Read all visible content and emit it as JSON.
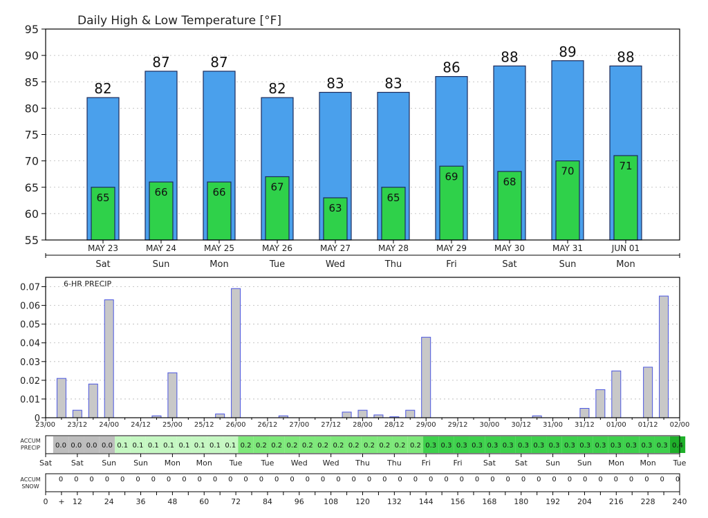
{
  "chart_data": [
    {
      "type": "bar",
      "title": "Daily High & Low Temperature [°F]",
      "ylim": [
        55,
        95
      ],
      "yticks": [
        55,
        60,
        65,
        70,
        75,
        80,
        85,
        90,
        95
      ],
      "grid": true,
      "categories": [
        "MAY 23",
        "MAY 24",
        "MAY 25",
        "MAY 26",
        "MAY 27",
        "MAY 28",
        "MAY 29",
        "MAY 30",
        "MAY 31",
        "JUN 01"
      ],
      "weekdays": [
        "Sat",
        "Sun",
        "Mon",
        "Tue",
        "Wed",
        "Thu",
        "Fri",
        "Sat",
        "Sun",
        "Mon"
      ],
      "series": [
        {
          "name": "High",
          "color": "#4aa0ec",
          "values": [
            82,
            87,
            87,
            82,
            83,
            83,
            86,
            88,
            89,
            88
          ]
        },
        {
          "name": "Low",
          "color": "#2fd14a",
          "values": [
            65,
            66,
            66,
            67,
            63,
            65,
            69,
            68,
            70,
            71
          ]
        }
      ]
    },
    {
      "type": "bar",
      "title": "6-HR PRECIP",
      "ylim": [
        0,
        0.075
      ],
      "yticks": [
        "0",
        "0.01",
        "0.02",
        "0.03",
        "0.04",
        "0.05",
        "0.06",
        "0.07"
      ],
      "grid": true,
      "bar_color": "#c8c8c8",
      "bar_edge_color": "#4a55e0",
      "x_tick_labels": [
        "23/00",
        "23/12",
        "24/00",
        "24/12",
        "25/00",
        "25/12",
        "26/00",
        "26/12",
        "27/00",
        "27/12",
        "28/00",
        "28/12",
        "29/00",
        "29/12",
        "30/00",
        "30/12",
        "31/00",
        "31/12",
        "01/00",
        "01/12",
        "02/00"
      ],
      "values": [
        0.021,
        0.004,
        0.018,
        0.063,
        0,
        0,
        0.001,
        0.024,
        0,
        0,
        0.002,
        0.069,
        0,
        0,
        0.001,
        0,
        0,
        0,
        0.003,
        0.004,
        0.0015,
        0.0005,
        0.004,
        0.043,
        0,
        0,
        0,
        0,
        0,
        0,
        0.001,
        0,
        0,
        0.005,
        0.015,
        0.025,
        0,
        0.027,
        0.065
      ]
    },
    {
      "type": "table",
      "label_lines": [
        "ACCUM",
        "PRECIP"
      ],
      "values": [
        "0.0",
        "0.0",
        "0.0",
        "0.0",
        "0.1",
        "0.1",
        "0.1",
        "0.1",
        "0.1",
        "0.1",
        "0.1",
        "0.1",
        "0.2",
        "0.2",
        "0.2",
        "0.2",
        "0.2",
        "0.2",
        "0.2",
        "0.2",
        "0.2",
        "0.2",
        "0.2",
        "0.2",
        "0.3",
        "0.3",
        "0.3",
        "0.3",
        "0.3",
        "0.3",
        "0.3",
        "0.3",
        "0.3",
        "0.3",
        "0.3",
        "0.3",
        "0.3",
        "0.3",
        "0.3",
        "0.3",
        "0.4"
      ],
      "colors": {
        "0.0": "#bdbdbd",
        "0.1": "#c5f7c2",
        "0.2": "#7ee87a",
        "0.3": "#3ed04c",
        "0.4": "#1fb02a"
      },
      "weekday_labels": [
        "Sat",
        "Sat",
        "Sun",
        "Sun",
        "Mon",
        "Mon",
        "Tue",
        "Tue",
        "Wed",
        "Wed",
        "Thu",
        "Thu",
        "Fri",
        "Fri",
        "Sat",
        "Sat",
        "Sun",
        "Sun",
        "Mon",
        "Mon",
        "Tue"
      ]
    },
    {
      "type": "table",
      "label_lines": [
        "ACCUM",
        "SNOW"
      ],
      "values": [
        "0",
        "0",
        "0",
        "0",
        "0",
        "0",
        "0",
        "0",
        "0",
        "0",
        "0",
        "0",
        "0",
        "0",
        "0",
        "0",
        "0",
        "0",
        "0",
        "0",
        "0",
        "0",
        "0",
        "0",
        "0",
        "0",
        "0",
        "0",
        "0",
        "0",
        "0",
        "0",
        "0",
        "0",
        "0",
        "0",
        "0",
        "0",
        "0",
        "0",
        "0"
      ],
      "hour_labels": [
        "0",
        "+",
        "12",
        "24",
        "36",
        "48",
        "60",
        "72",
        "84",
        "96",
        "108",
        "120",
        "132",
        "144",
        "156",
        "168",
        "180",
        "192",
        "204",
        "216",
        "228",
        "240"
      ]
    }
  ]
}
